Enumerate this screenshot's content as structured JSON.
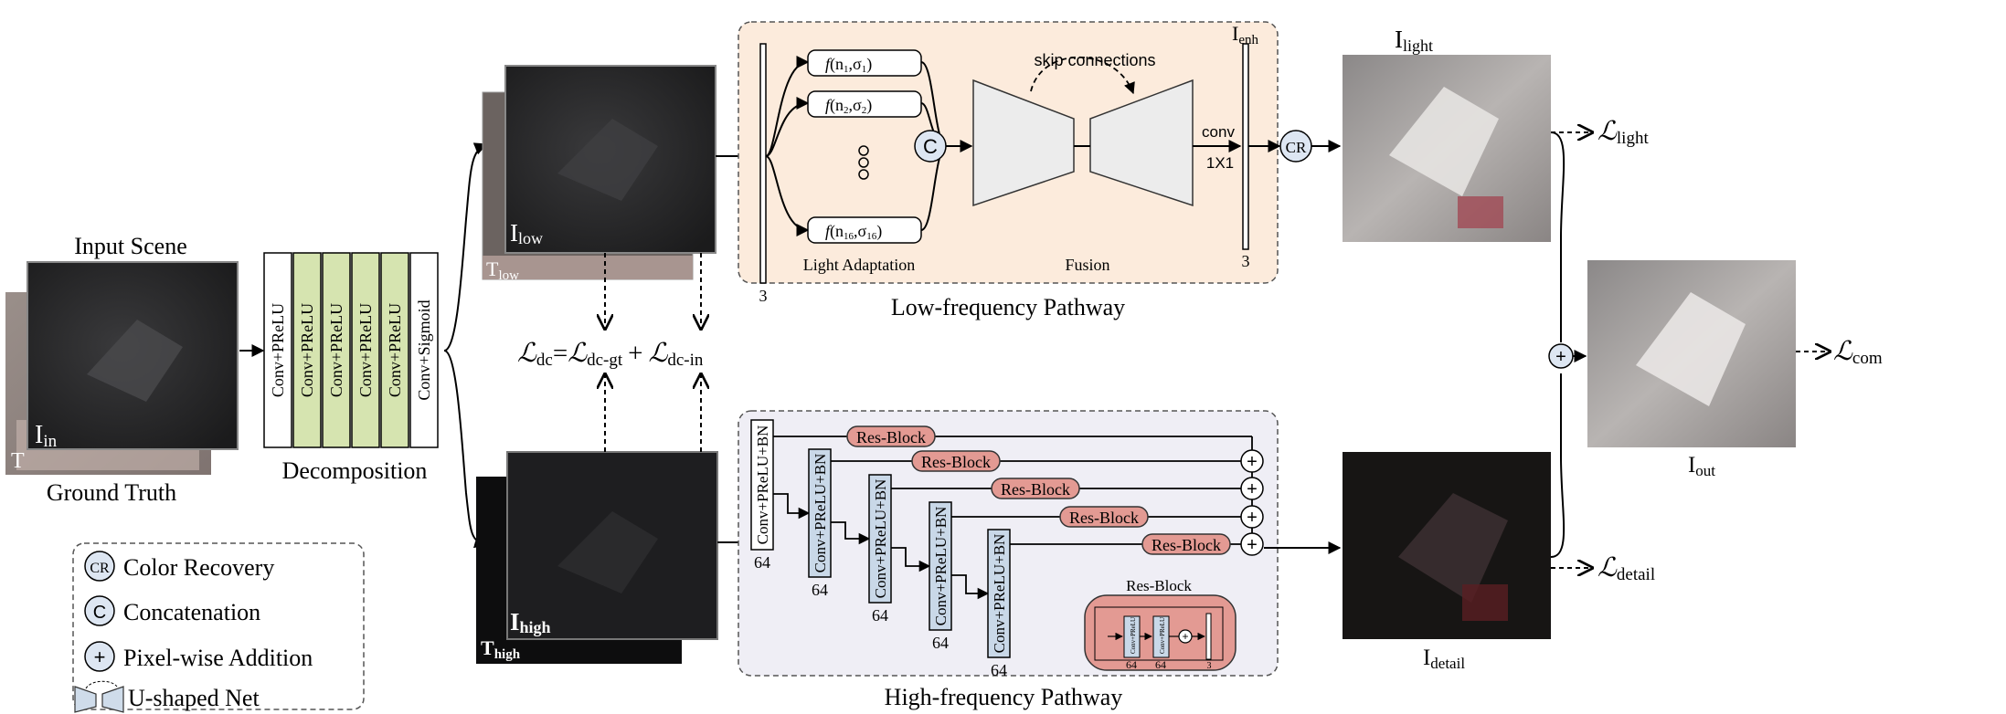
{
  "input": {
    "title": "Input Scene",
    "caption": "Ground Truth",
    "img_label": "I",
    "img_sub": "in",
    "back_label": "T"
  },
  "decomposition": {
    "caption": "Decomposition",
    "layers": [
      "Conv+PReLU",
      "Conv+PReLU",
      "Conv+PReLU",
      "Conv+PReLU",
      "Conv+PReLU",
      "Conv+Sigmoid"
    ]
  },
  "low_image": {
    "label": "I",
    "sub": "low",
    "back_label": "T",
    "back_sub": "low"
  },
  "high_image": {
    "label": "I",
    "sub": "high",
    "back_label": "T",
    "back_sub": "high"
  },
  "loss_dc": {
    "L": "ℒ",
    "sub_dc": "dc",
    "eq": "=",
    "sub_gt": "dc-gt",
    "plus": "+",
    "sub_in": "dc-in"
  },
  "low_pathway": {
    "title": "Low-frequency Pathway",
    "channels_in": "3",
    "f_labels": [
      {
        "n": "n",
        "ns": "1",
        "s": "σ",
        "ss": "1"
      },
      {
        "n": "n",
        "ns": "2",
        "s": "σ",
        "ss": "2"
      },
      {
        "n": "n",
        "ns": "16",
        "s": "σ",
        "ss": "16"
      }
    ],
    "concat": "C",
    "light_adaptation": "Light Adaptation",
    "skip": "skip connections",
    "fusion": "Fusion",
    "conv": "conv",
    "conv_size": "1X1",
    "enh_label": "I",
    "enh_sub": "enh",
    "channels_out": "3"
  },
  "cr": "CR",
  "light": {
    "label": "I",
    "sub": "light",
    "loss_sub": "light"
  },
  "out": {
    "label": "I",
    "sub": "out",
    "loss_sub": "com"
  },
  "detail": {
    "label": "I",
    "sub": "detail",
    "loss_sub": "detail"
  },
  "high_pathway": {
    "title": "High-frequency Pathway",
    "block_label": "Conv+PReLU+BN",
    "block_channels": "64",
    "res_block": "Res-Block",
    "res_detail": {
      "title": "Res-Block",
      "inner": "Conv+PReLU",
      "ch": "64",
      "out_ch": "3"
    }
  },
  "legend": {
    "cr_symbol": "CR",
    "cr_text": "Color Recovery",
    "c_symbol": "C",
    "c_text": "Concatenation",
    "plus_symbol": "+",
    "plus_text": "Pixel-wise Addition",
    "u_text": "U-shaped Net"
  },
  "colors": {
    "green_layer": "#d6e4b0",
    "blue_block": "#c9d8e8",
    "res_block": "#e39a93",
    "low_bg": "#fcebdc",
    "high_bg": "#efeef5",
    "unet": "#ececec"
  }
}
